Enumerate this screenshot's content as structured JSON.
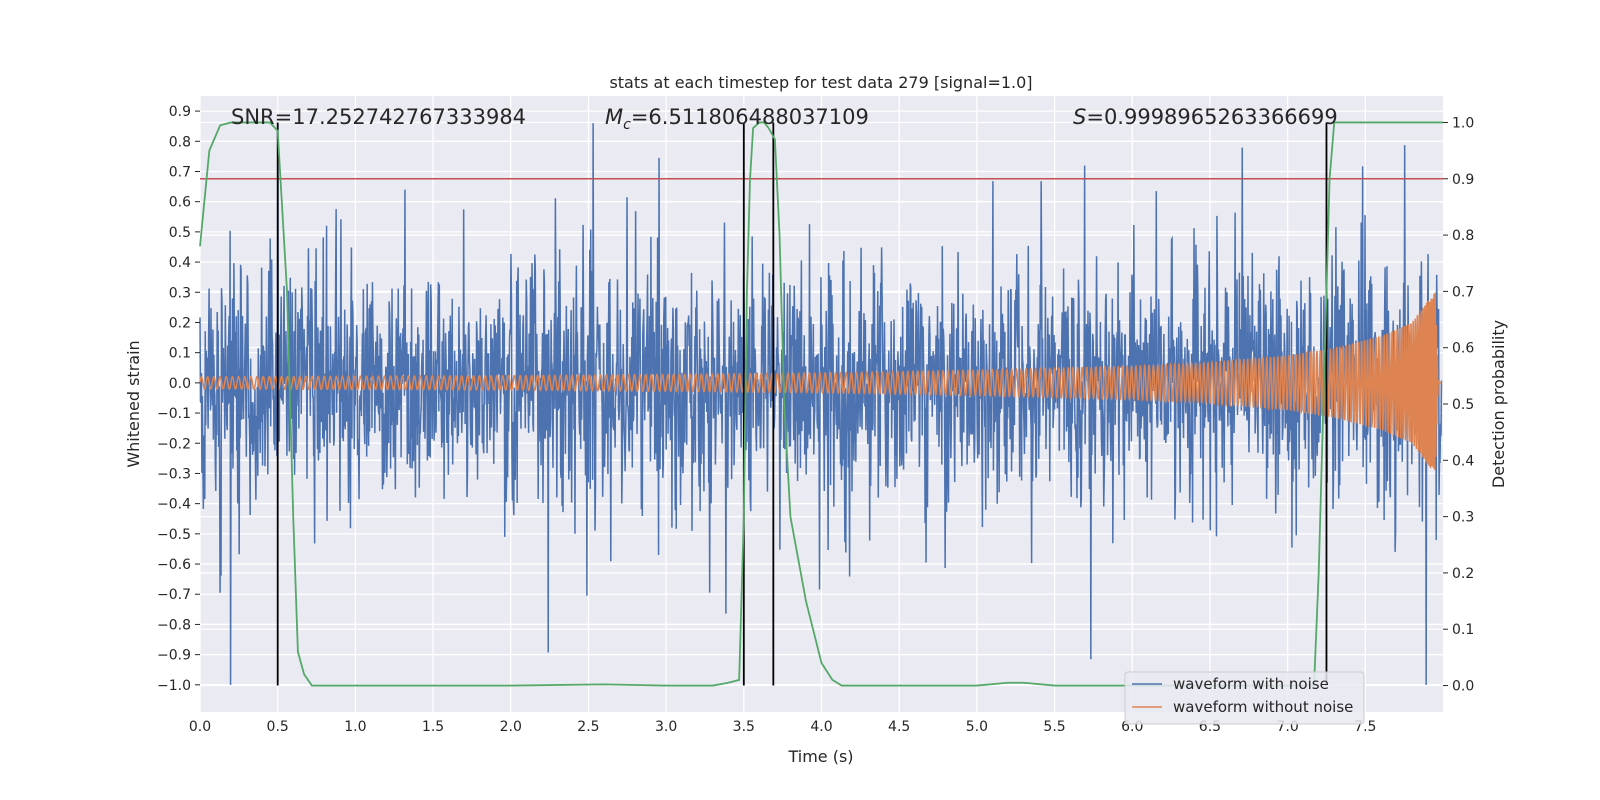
{
  "chart_data": {
    "type": "line",
    "title": "stats at each timestep for test data 279 [signal=1.0]",
    "xlabel": "Time (s)",
    "ylabel": "Whitened strain",
    "y2label": "Detection probability",
    "xlim": [
      0.0,
      8.0
    ],
    "ylim": [
      -1.09,
      0.95
    ],
    "y2lim": [
      -0.047,
      1.047
    ],
    "x_ticks": [
      "0.0",
      "0.5",
      "1.0",
      "1.5",
      "2.0",
      "2.5",
      "3.0",
      "3.5",
      "4.0",
      "4.5",
      "5.0",
      "5.5",
      "6.0",
      "6.5",
      "7.0",
      "7.5"
    ],
    "y_ticks": [
      "0.9",
      "0.8",
      "0.7",
      "0.6",
      "0.5",
      "0.4",
      "0.3",
      "0.2",
      "0.1",
      "0.0",
      "−0.1",
      "−0.2",
      "−0.3",
      "−0.4",
      "−0.5",
      "−0.6",
      "−0.7",
      "−0.8",
      "−0.9",
      "−1.0"
    ],
    "y2_ticks": [
      "1.0",
      "0.9",
      "0.8",
      "0.7",
      "0.6",
      "0.5",
      "0.4",
      "0.3",
      "0.2",
      "0.1",
      "0.0"
    ],
    "grid": true,
    "legend_position": "bottom-right",
    "annotations": {
      "snr": "SNR=17.252742767333984",
      "mc": "=6.511806488037109",
      "mc_symbol": "M",
      "mc_sub": "c",
      "s": "=0.9998965263366699",
      "s_symbol": "S"
    },
    "series": [
      {
        "name": "waveform with noise",
        "color": "#4c72b0",
        "description_range": [
          -1.0,
          0.86
        ]
      },
      {
        "name": "waveform without noise",
        "color": "#dd8452",
        "envelope": {
          "x": [
            0.0,
            1.0,
            2.0,
            3.0,
            4.0,
            5.0,
            6.0,
            6.5,
            7.0,
            7.3,
            7.6,
            7.8,
            7.9,
            7.95,
            7.97
          ],
          "amplitude": [
            0.02,
            0.022,
            0.024,
            0.028,
            0.033,
            0.042,
            0.055,
            0.067,
            0.09,
            0.115,
            0.155,
            0.2,
            0.27,
            0.3,
            0.0
          ]
        }
      },
      {
        "name": "detection probability",
        "axis": "right",
        "color": "#55a868",
        "x": [
          0.0,
          0.06,
          0.13,
          0.2,
          0.3,
          0.4,
          0.45,
          0.5,
          0.56,
          0.6,
          0.63,
          0.67,
          0.72,
          0.8,
          1.0,
          2.0,
          2.6,
          3.0,
          3.3,
          3.4,
          3.47,
          3.5,
          3.52,
          3.54,
          3.56,
          3.6,
          3.63,
          3.66,
          3.7,
          3.73,
          3.76,
          3.8,
          3.9,
          4.0,
          4.07,
          4.13,
          4.5,
          5.0,
          5.2,
          5.3,
          5.5,
          6.0,
          7.0,
          7.17,
          7.2,
          7.24,
          7.27,
          7.3,
          7.6,
          8.0
        ],
        "y": [
          0.78,
          0.95,
          0.995,
          1.0,
          1.0,
          1.0,
          1.0,
          0.985,
          0.7,
          0.3,
          0.06,
          0.02,
          0.0,
          0.0,
          0.0,
          0.0,
          0.002,
          0.0,
          0.0,
          0.005,
          0.01,
          0.3,
          0.7,
          0.9,
          0.99,
          1.0,
          1.0,
          0.99,
          0.97,
          0.8,
          0.5,
          0.3,
          0.15,
          0.04,
          0.01,
          0.0,
          0.0,
          0.0,
          0.005,
          0.005,
          0.0,
          0.0,
          0.0,
          0.0,
          0.2,
          0.6,
          0.9,
          1.0,
          1.0,
          1.0
        ]
      }
    ],
    "hlines": [
      {
        "axis": "right",
        "y": 0.9,
        "color": "#c44e52"
      }
    ],
    "vlines": [
      {
        "x": 0.5,
        "y_right": [
          0.0,
          1.0
        ]
      },
      {
        "x": 3.5,
        "y_right": [
          0.0,
          1.0
        ]
      },
      {
        "x": 3.69,
        "y_right": [
          0.0,
          1.0
        ]
      },
      {
        "x": 7.25,
        "y_right": [
          0.0,
          1.0
        ]
      }
    ]
  }
}
